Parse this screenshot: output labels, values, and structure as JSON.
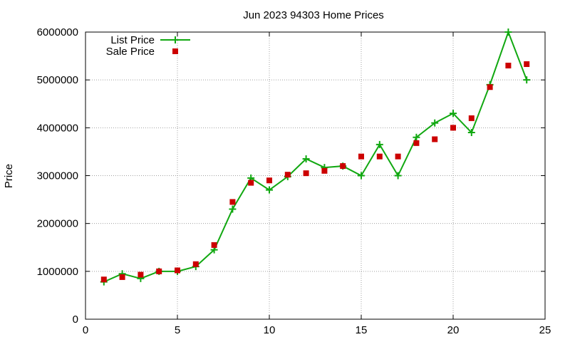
{
  "chart_data": {
    "type": "line",
    "title": "Jun 2023 94303 Home Prices",
    "xlabel": "",
    "ylabel": "Price",
    "xlim": [
      0,
      25
    ],
    "ylim": [
      0,
      6000000
    ],
    "x_ticks": [
      0,
      5,
      10,
      15,
      20,
      25
    ],
    "y_ticks": [
      0,
      1000000,
      2000000,
      3000000,
      4000000,
      5000000,
      6000000
    ],
    "grid": true,
    "legend_position": "top-left",
    "series": [
      {
        "name": "List Price",
        "style": "line-points",
        "marker": "plus",
        "color": "#11a811",
        "x": [
          1,
          2,
          3,
          4,
          5,
          6,
          7,
          8,
          9,
          10,
          11,
          12,
          13,
          14,
          15,
          16,
          17,
          18,
          19,
          20,
          21,
          22,
          23,
          24
        ],
        "values": [
          780000,
          950000,
          850000,
          1000000,
          1000000,
          1100000,
          1450000,
          2300000,
          2950000,
          2700000,
          2980000,
          3350000,
          3170000,
          3200000,
          3000000,
          3650000,
          3000000,
          3800000,
          4100000,
          4300000,
          3900000,
          4900000,
          6000000,
          5000000
        ]
      },
      {
        "name": "Sale Price",
        "style": "points",
        "marker": "square",
        "color": "#cc0000",
        "x": [
          1,
          2,
          3,
          4,
          5,
          6,
          7,
          8,
          9,
          10,
          11,
          12,
          13,
          14,
          15,
          16,
          17,
          18,
          19,
          20,
          21,
          22,
          23,
          24
        ],
        "values": [
          830000,
          880000,
          930000,
          1000000,
          1020000,
          1150000,
          1550000,
          2450000,
          2850000,
          2900000,
          3020000,
          3050000,
          3100000,
          3200000,
          3400000,
          3400000,
          3400000,
          3680000,
          3760000,
          4000000,
          4200000,
          4850000,
          5300000,
          5330000
        ]
      }
    ]
  }
}
